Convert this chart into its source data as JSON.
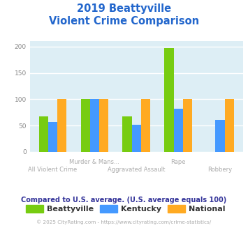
{
  "title_line1": "2019 Beattyville",
  "title_line2": "Violent Crime Comparison",
  "categories": [
    "All Violent Crime",
    "Murder & Mans...",
    "Aggravated Assault",
    "Rape",
    "Robbery"
  ],
  "series": {
    "Beattyville": [
      67,
      100,
      67,
      197,
      0
    ],
    "Kentucky": [
      57,
      100,
      52,
      82,
      61
    ],
    "National": [
      100,
      100,
      100,
      100,
      100
    ]
  },
  "colors": {
    "Beattyville": "#77cc11",
    "Kentucky": "#4499ff",
    "National": "#ffaa22"
  },
  "ylim": [
    0,
    210
  ],
  "yticks": [
    0,
    50,
    100,
    150,
    200
  ],
  "title_color": "#2266cc",
  "axis_label_color": "#aaaaaa",
  "plot_bg": "#ddeef5",
  "fig_bg": "#ffffff",
  "note_text": "Compared to U.S. average. (U.S. average equals 100)",
  "note_color": "#333399",
  "footer_text": "© 2025 CityRating.com - https://www.cityrating.com/crime-statistics/",
  "footer_color": "#aaaaaa",
  "grid_color": "#ffffff",
  "bar_width": 0.22
}
